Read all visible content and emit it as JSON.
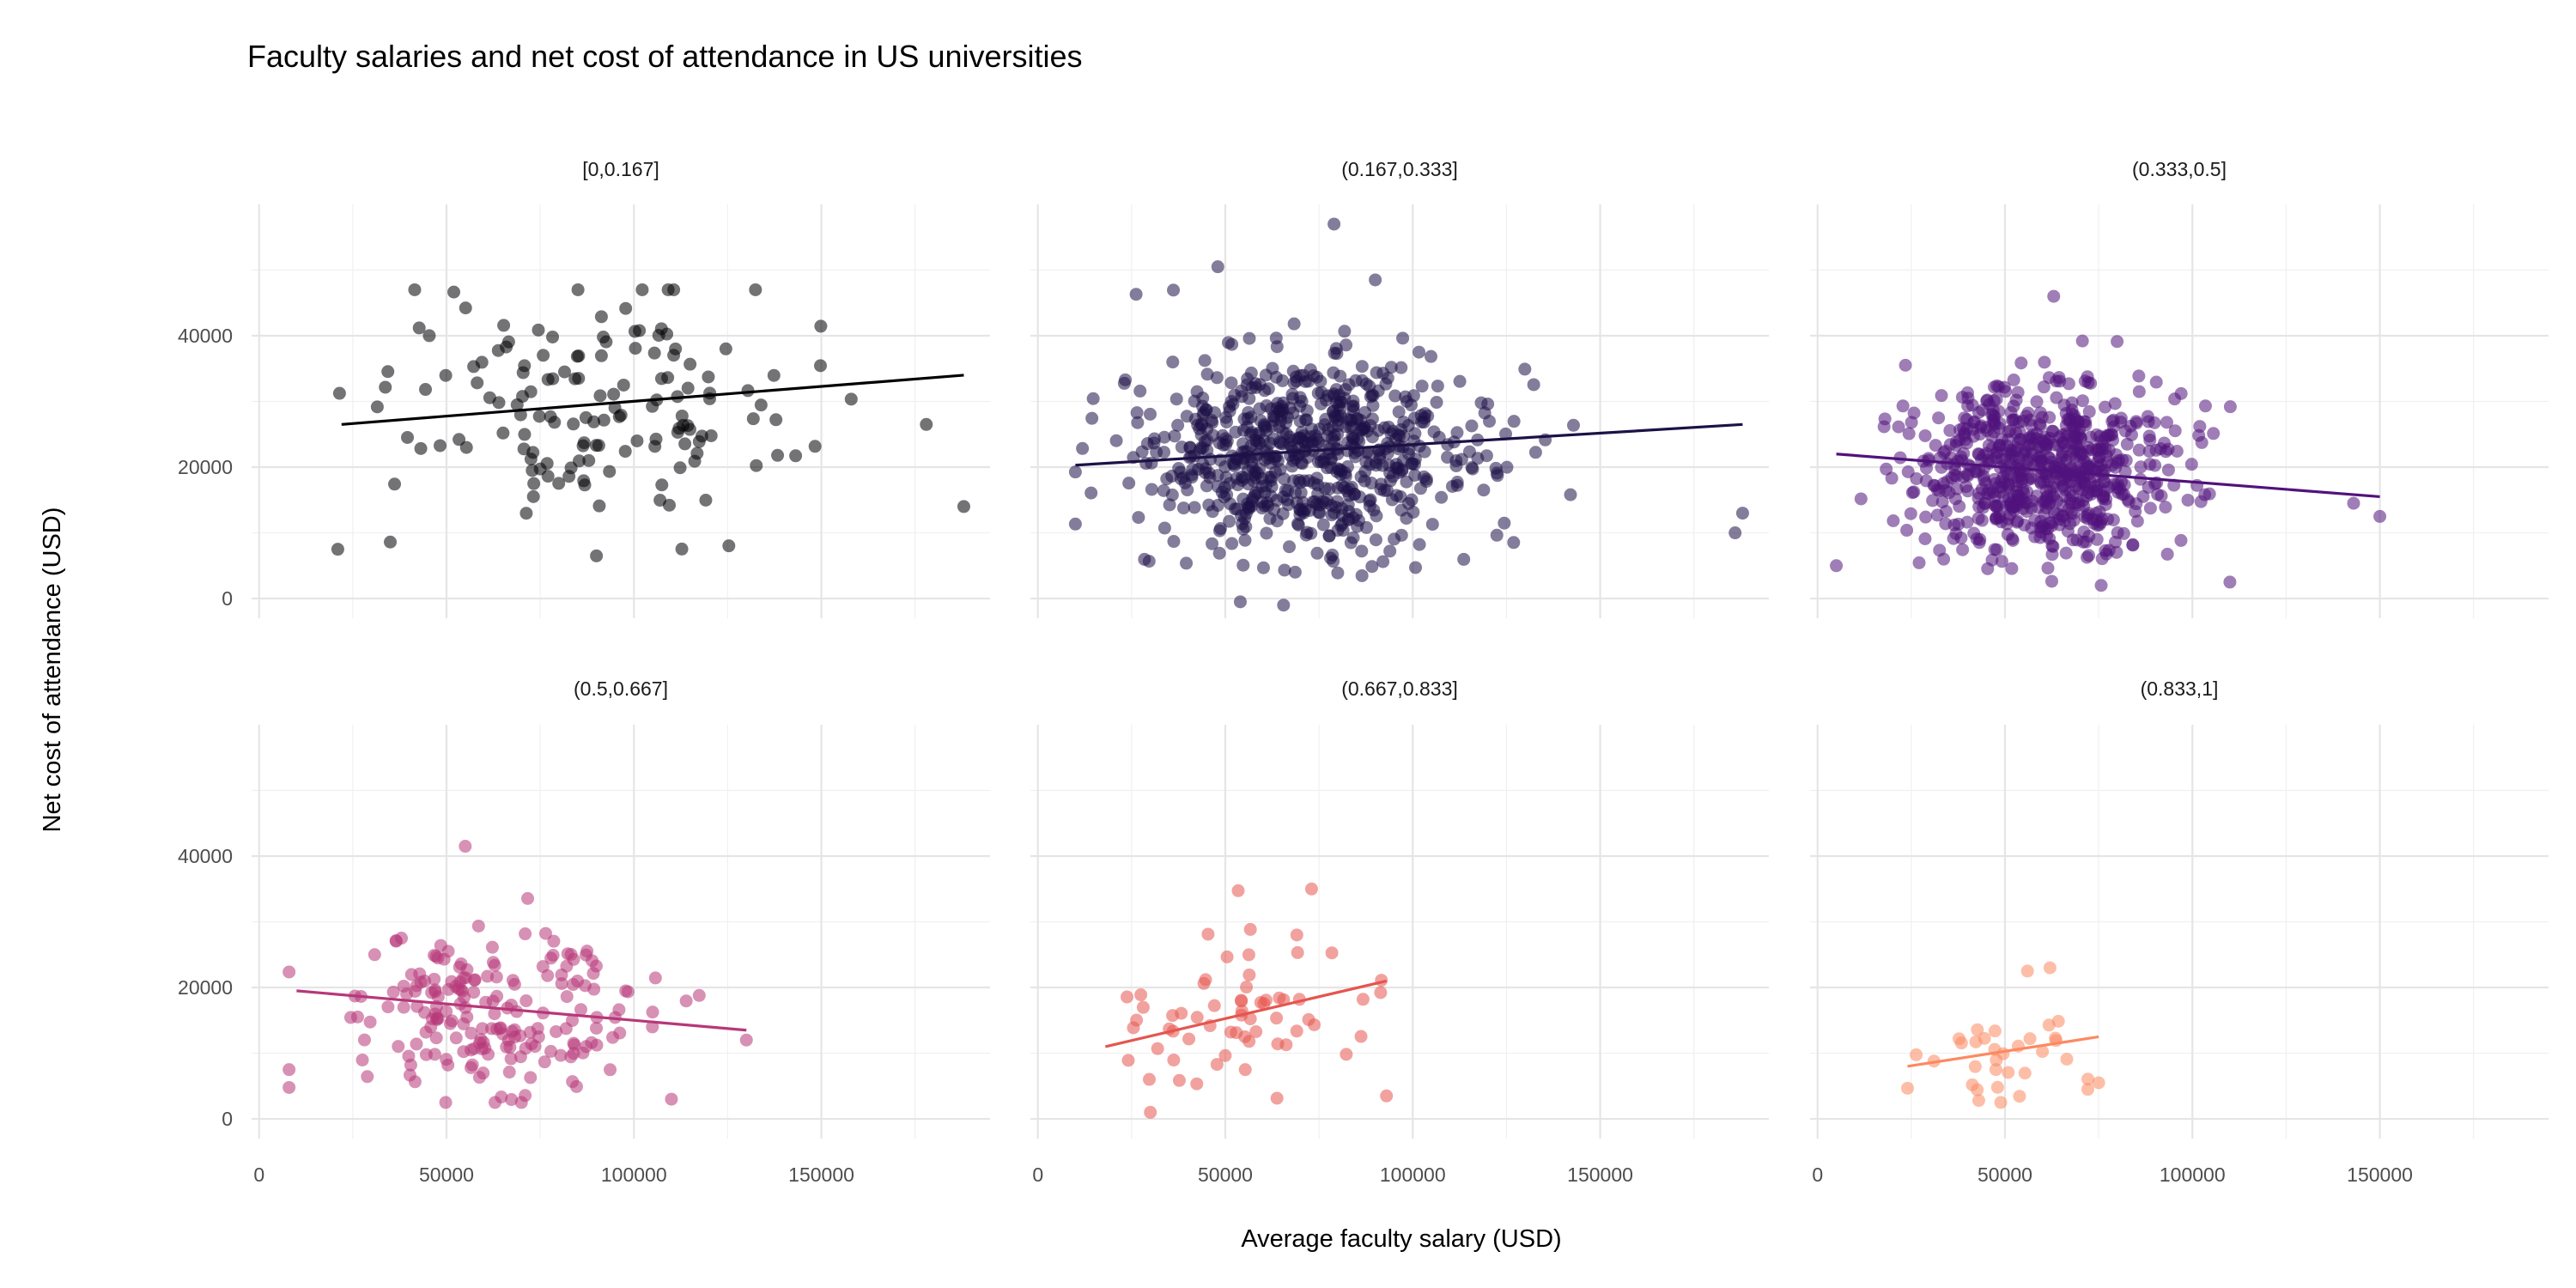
{
  "chart_data": {
    "type": "scatter",
    "title": "Faculty salaries and net cost of attendance in US universities",
    "xlabel": "Average faculty salary (USD)",
    "ylabel": "Net cost of attendance (USD)",
    "xlim": [
      -2000,
      195000
    ],
    "ylim": [
      -3000,
      60000
    ],
    "x_ticks": [
      0,
      50000,
      100000,
      150000
    ],
    "x_tick_labels": [
      "0",
      "50000",
      "100000",
      "150000"
    ],
    "y_ticks": [
      0,
      20000,
      40000
    ],
    "y_tick_labels": [
      "0",
      "20000",
      "40000"
    ],
    "layout": "facet grid, 2 rows x 3 columns",
    "grid": true,
    "legend": "none",
    "panels": [
      {
        "label": "[0,0.167]",
        "color": "#000004",
        "n_points": 150,
        "x_center": 85000,
        "x_spread": 28000,
        "x_min": 20000,
        "x_max": 188000,
        "y_center": 30000,
        "y_spread": 9000,
        "y_min": 6000,
        "y_max": 47000,
        "outliers": [
          [
            21000,
            7500
          ],
          [
            35000,
            8600
          ],
          [
            90000,
            6500
          ],
          [
            188000,
            14000
          ],
          [
            178000,
            26500
          ]
        ],
        "trend": {
          "x0": 22000,
          "y0": 26500,
          "x1": 188000,
          "y1": 34000
        }
      },
      {
        "label": "(0.167,0.333]",
        "color": "#1d1147",
        "n_points": 700,
        "x_center": 72000,
        "x_spread": 22000,
        "x_min": 10000,
        "x_max": 188000,
        "y_center": 22000,
        "y_spread": 7500,
        "y_min": -1000,
        "y_max": 57000,
        "outliers": [
          [
            79000,
            57000
          ],
          [
            54000,
            -500
          ],
          [
            188000,
            13000
          ],
          [
            186000,
            10000
          ],
          [
            48000,
            50500
          ],
          [
            90000,
            48500
          ]
        ],
        "trend": {
          "x0": 10000,
          "y0": 20300,
          "x1": 188000,
          "y1": 26500
        }
      },
      {
        "label": "(0.333,0.5]",
        "color": "#51127c",
        "n_points": 700,
        "x_center": 60000,
        "x_spread": 17000,
        "x_min": 5000,
        "x_max": 150000,
        "y_center": 20000,
        "y_spread": 6500,
        "y_min": 2000,
        "y_max": 46000,
        "outliers": [
          [
            5000,
            5000
          ],
          [
            150000,
            12500
          ],
          [
            143000,
            14500
          ],
          [
            110000,
            2500
          ],
          [
            63000,
            46000
          ]
        ],
        "trend": {
          "x0": 5000,
          "y0": 22000,
          "x1": 150000,
          "y1": 15500
        }
      },
      {
        "label": "(0.5,0.667]",
        "color": "#b73779",
        "n_points": 200,
        "x_center": 65000,
        "x_spread": 20000,
        "x_min": 8000,
        "x_max": 130000,
        "y_center": 17000,
        "y_spread": 6500,
        "y_min": 2500,
        "y_max": 42000,
        "outliers": [
          [
            55000,
            41500
          ],
          [
            130000,
            12000
          ],
          [
            8000,
            7500
          ],
          [
            110000,
            3000
          ]
        ],
        "trend": {
          "x0": 10000,
          "y0": 19500,
          "x1": 130000,
          "y1": 13500
        }
      },
      {
        "label": "(0.667,0.833]",
        "color": "#e5554f",
        "n_points": 65,
        "x_center": 55000,
        "x_spread": 17000,
        "x_min": 15000,
        "x_max": 93000,
        "y_center": 16000,
        "y_spread": 6500,
        "y_min": 500,
        "y_max": 36000,
        "outliers": [
          [
            73000,
            35000
          ],
          [
            93000,
            3500
          ],
          [
            30000,
            1000
          ]
        ],
        "trend": {
          "x0": 18000,
          "y0": 11000,
          "x1": 93000,
          "y1": 21000
        }
      },
      {
        "label": "(0.833,1]",
        "color": "#fc8961",
        "n_points": 35,
        "x_center": 50000,
        "x_spread": 12000,
        "x_min": 24000,
        "x_max": 75000,
        "y_center": 10000,
        "y_spread": 4000,
        "y_min": 2500,
        "y_max": 24000,
        "outliers": [
          [
            62000,
            23000
          ],
          [
            56000,
            22500
          ],
          [
            43000,
            2800
          ],
          [
            75000,
            5500
          ]
        ],
        "trend": {
          "x0": 24000,
          "y0": 8000,
          "x1": 75000,
          "y1": 12500
        }
      }
    ]
  }
}
